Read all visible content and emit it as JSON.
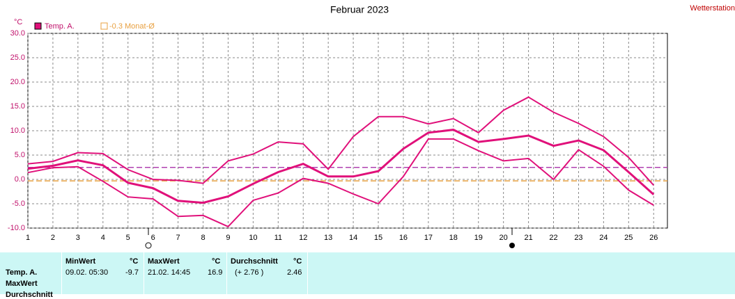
{
  "chart_data": {
    "type": "line",
    "title": "Februar 2023",
    "source": "Wetterstation",
    "ylabel": "°C",
    "x": [
      1,
      2,
      3,
      4,
      5,
      6,
      7,
      8,
      9,
      10,
      11,
      12,
      13,
      14,
      15,
      16,
      17,
      18,
      19,
      20,
      21,
      22,
      23,
      24,
      25,
      26
    ],
    "xlim": [
      1,
      26.55
    ],
    "xticks": [
      1,
      2,
      3,
      4,
      5,
      6,
      7,
      8,
      9,
      10,
      11,
      12,
      13,
      14,
      15,
      16,
      17,
      18,
      19,
      20,
      21,
      22,
      23,
      24,
      25,
      26
    ],
    "ylim": [
      -10,
      30
    ],
    "yticks": [
      {
        "value": -10,
        "label": "-10.0"
      },
      {
        "value": -5,
        "label": "-5.0"
      },
      {
        "value": 0,
        "label": "0.0"
      },
      {
        "value": 5,
        "label": "5.0"
      },
      {
        "value": 10,
        "label": "10.0"
      },
      {
        "value": 15,
        "label": "15.0"
      },
      {
        "value": 20,
        "label": "20.0"
      },
      {
        "value": 25,
        "label": "25.0"
      },
      {
        "value": 30,
        "label": "30.0"
      }
    ],
    "grid": true,
    "series": [
      {
        "name": "Temp. A.",
        "color": "#e0107a",
        "values": [
          2.2,
          2.8,
          3.9,
          2.9,
          -0.7,
          -1.8,
          -4.4,
          -4.8,
          -3.5,
          -0.9,
          1.5,
          3.2,
          0.6,
          0.6,
          1.7,
          6.3,
          9.6,
          10.2,
          7.7,
          8.3,
          9.0,
          6.9,
          8.0,
          6.0,
          1.5,
          -3.1
        ]
      },
      {
        "color": "#e0107a",
        "values": [
          3.2,
          3.7,
          5.5,
          5.3,
          2.0,
          0.0,
          -0.2,
          -0.8,
          3.8,
          5.2,
          7.7,
          7.3,
          2.1,
          8.8,
          12.9,
          12.9,
          11.4,
          12.5,
          9.6,
          14.2,
          16.9,
          13.8,
          11.5,
          8.8,
          4.5,
          -1.2
        ]
      },
      {
        "color": "#e0107a",
        "values": [
          1.4,
          2.4,
          2.6,
          -0.4,
          -3.6,
          -4.0,
          -7.6,
          -7.4,
          -9.7,
          -4.3,
          -2.8,
          0.2,
          -0.8,
          -3.0,
          -5.0,
          0.6,
          8.3,
          8.3,
          5.9,
          3.8,
          4.3,
          0.0,
          6.1,
          2.7,
          -2.2,
          -5.3
        ]
      }
    ],
    "reference_lines": [
      {
        "value": -0.3,
        "label": "-0.3 Monat-Ø",
        "color": "#e8a040"
      },
      {
        "value": 2.46,
        "color": "#b040b0"
      }
    ]
  },
  "table": {
    "row_labels": [
      "Temp. A.",
      "MaxWert",
      "Durchschnitt"
    ],
    "min": {
      "header": "MinWert",
      "unit": "°C",
      "time": "09.02.  05:30",
      "value": "-9.7"
    },
    "max": {
      "header": "MaxWert",
      "unit": "°C",
      "time": "21.02.  14:45",
      "value": "16.9"
    },
    "avg": {
      "header": "Durchschnitt",
      "unit": "°C",
      "diff": "(+ 2.76 )",
      "value": "2.46"
    }
  }
}
